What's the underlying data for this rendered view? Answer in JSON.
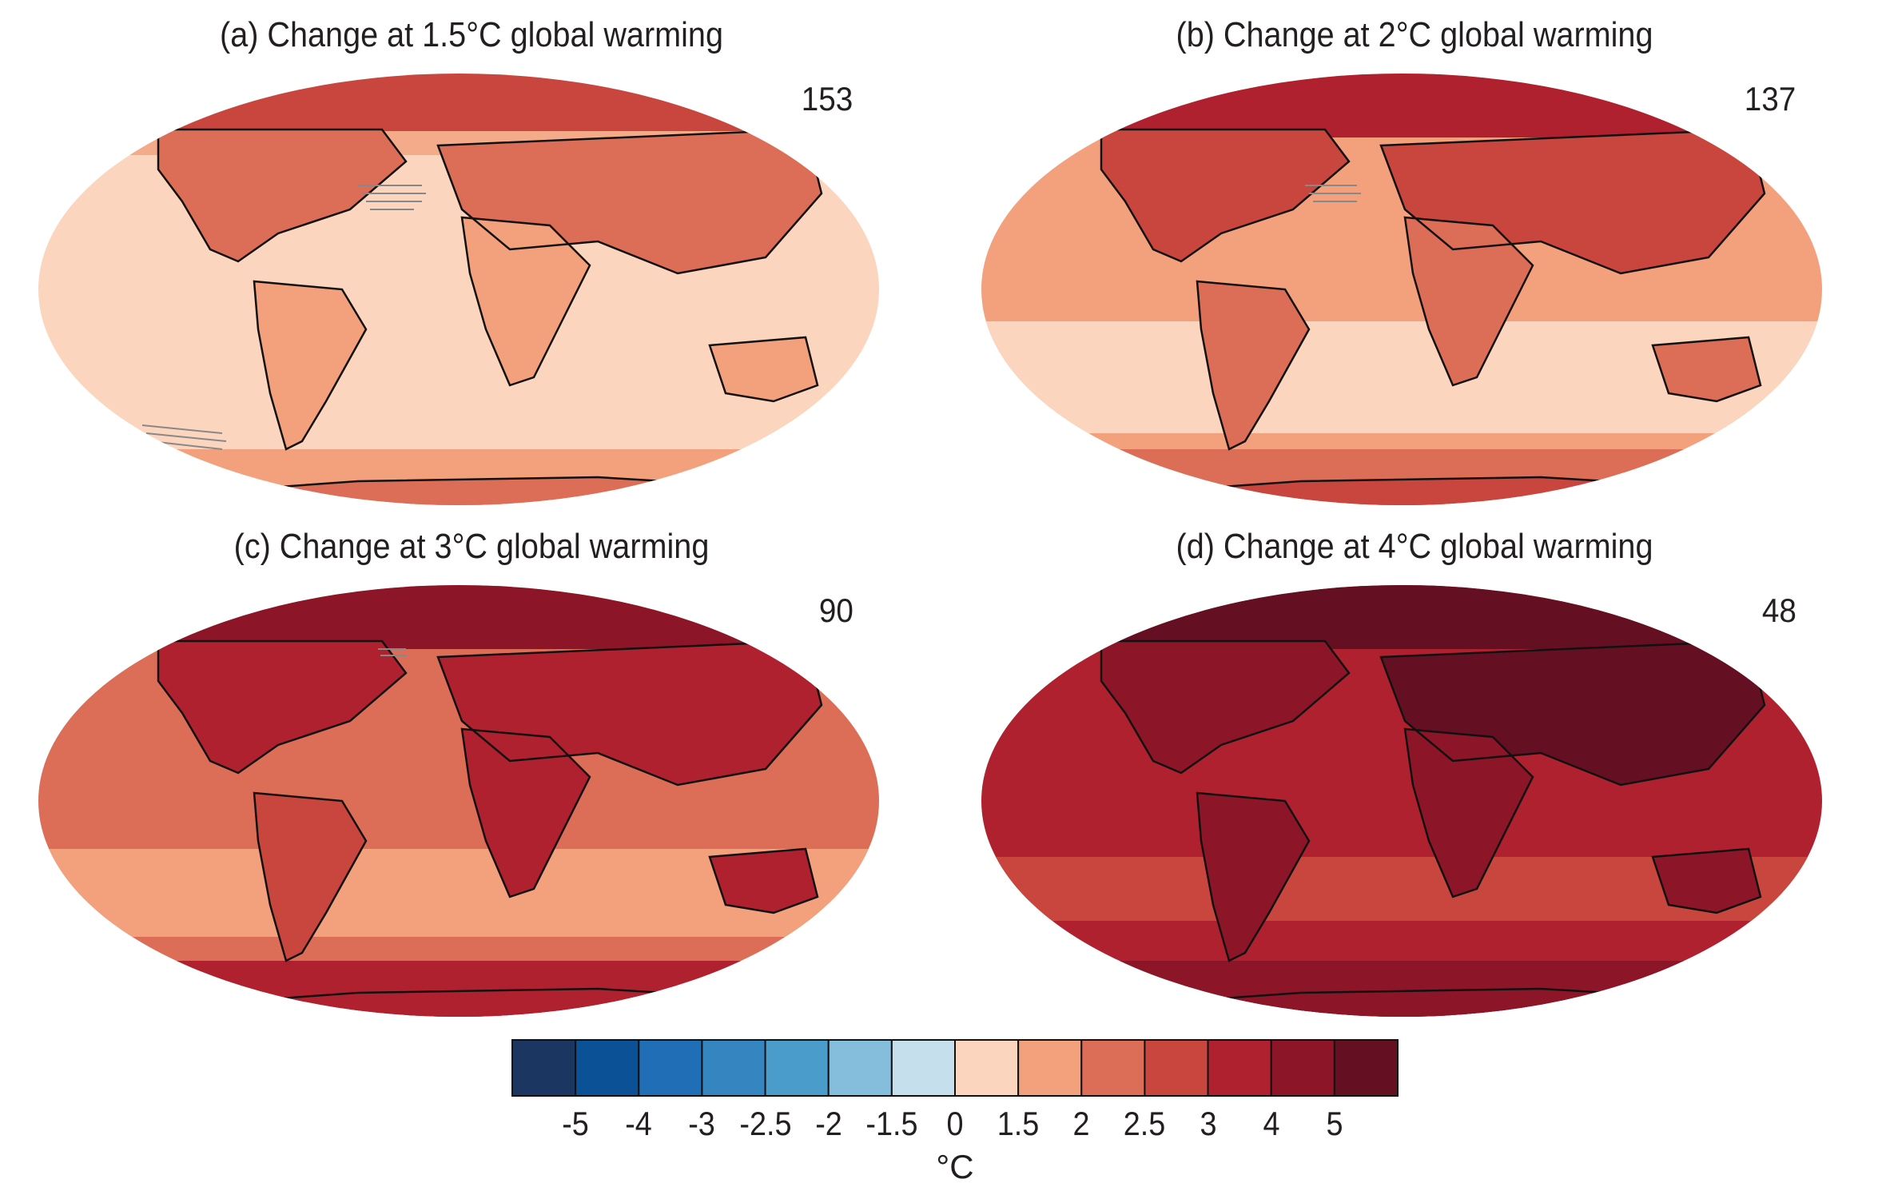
{
  "panels": [
    {
      "id": "a",
      "title": "(a) Change at 1.5°C global warming",
      "model_count": "153",
      "warming_level_c": 1.5
    },
    {
      "id": "b",
      "title": "(b) Change at 2°C global warming",
      "model_count": "137",
      "warming_level_c": 2
    },
    {
      "id": "c",
      "title": "(c) Change at 3°C global warming",
      "model_count": "90",
      "warming_level_c": 3
    },
    {
      "id": "d",
      "title": "(d) Change at 4°C global warming",
      "model_count": "48",
      "warming_level_c": 4
    }
  ],
  "legend": {
    "unit": "°C",
    "tick_labels": [
      "-5",
      "-4",
      "-3",
      "-2.5",
      "-2",
      "-1.5",
      "0",
      "1.5",
      "2",
      "2.5",
      "3",
      "4",
      "5"
    ],
    "colors": [
      "#1b3660",
      "#0b5195",
      "#1f6eb6",
      "#3585c1",
      "#4a9dcb",
      "#85bedc",
      "#c5e0ec",
      "#fbd5bd",
      "#f3a07c",
      "#dc6e58",
      "#c8463d",
      "#b0212f",
      "#8c1627",
      "#650f22"
    ]
  }
}
